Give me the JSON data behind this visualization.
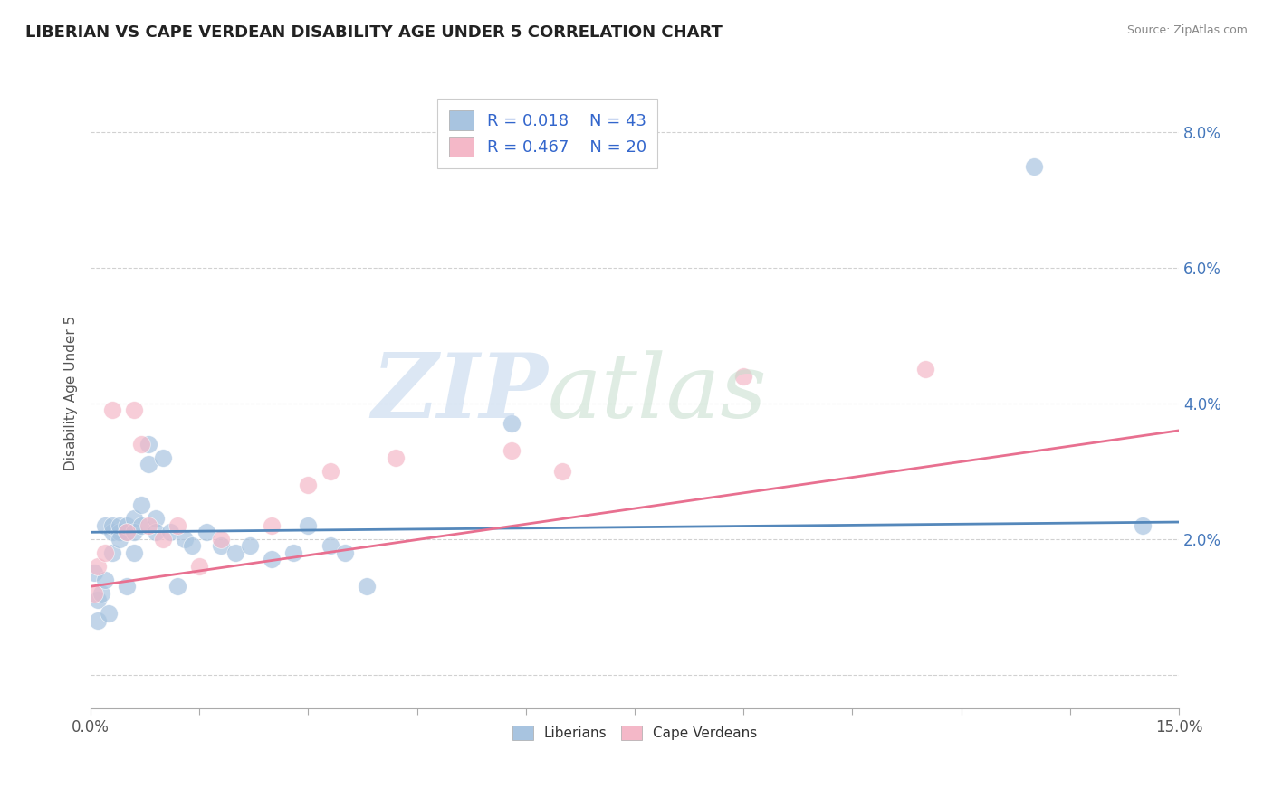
{
  "title": "LIBERIAN VS CAPE VERDEAN DISABILITY AGE UNDER 5 CORRELATION CHART",
  "source": "Source: ZipAtlas.com",
  "ylabel": "Disability Age Under 5",
  "xlim": [
    0.0,
    0.15
  ],
  "ylim": [
    -0.005,
    0.088
  ],
  "xticks": [
    0.0,
    0.015,
    0.03,
    0.045,
    0.06,
    0.075,
    0.09,
    0.105,
    0.12,
    0.135,
    0.15
  ],
  "xtick_labels": [
    "0.0%",
    "",
    "",
    "",
    "",
    "",
    "",
    "",
    "",
    "",
    "15.0%"
  ],
  "yticks": [
    0.0,
    0.02,
    0.04,
    0.06,
    0.08
  ],
  "ytick_labels": [
    "",
    "2.0%",
    "4.0%",
    "6.0%",
    "8.0%"
  ],
  "liberian_R": 0.018,
  "liberian_N": 43,
  "capeverdean_R": 0.467,
  "capeverdean_N": 20,
  "liberian_color": "#a8c4e0",
  "capeverdean_color": "#f4b8c8",
  "liberian_line_color": "#5588bb",
  "capeverdean_line_color": "#e87090",
  "background_color": "#ffffff",
  "grid_color": "#cccccc",
  "liberian_x": [
    0.0005,
    0.001,
    0.001,
    0.0015,
    0.002,
    0.002,
    0.0025,
    0.003,
    0.003,
    0.003,
    0.004,
    0.004,
    0.004,
    0.005,
    0.005,
    0.005,
    0.006,
    0.006,
    0.006,
    0.007,
    0.007,
    0.008,
    0.008,
    0.009,
    0.009,
    0.01,
    0.011,
    0.012,
    0.013,
    0.014,
    0.016,
    0.018,
    0.02,
    0.022,
    0.025,
    0.028,
    0.03,
    0.033,
    0.035,
    0.038,
    0.058,
    0.13,
    0.145
  ],
  "liberian_y": [
    0.015,
    0.008,
    0.011,
    0.012,
    0.022,
    0.014,
    0.009,
    0.018,
    0.021,
    0.022,
    0.021,
    0.022,
    0.02,
    0.021,
    0.013,
    0.022,
    0.023,
    0.021,
    0.018,
    0.022,
    0.025,
    0.031,
    0.034,
    0.023,
    0.021,
    0.032,
    0.021,
    0.013,
    0.02,
    0.019,
    0.021,
    0.019,
    0.018,
    0.019,
    0.017,
    0.018,
    0.022,
    0.019,
    0.018,
    0.013,
    0.037,
    0.075,
    0.022
  ],
  "capeverdean_x": [
    0.0005,
    0.001,
    0.002,
    0.003,
    0.005,
    0.006,
    0.007,
    0.008,
    0.01,
    0.012,
    0.015,
    0.018,
    0.025,
    0.03,
    0.033,
    0.042,
    0.058,
    0.065,
    0.09,
    0.115
  ],
  "capeverdean_y": [
    0.012,
    0.016,
    0.018,
    0.039,
    0.021,
    0.039,
    0.034,
    0.022,
    0.02,
    0.022,
    0.016,
    0.02,
    0.022,
    0.028,
    0.03,
    0.032,
    0.033,
    0.03,
    0.044,
    0.045
  ],
  "lib_line_x0": 0.0,
  "lib_line_y0": 0.021,
  "lib_line_x1": 0.15,
  "lib_line_y1": 0.0225,
  "cv_line_x0": 0.0,
  "cv_line_y0": 0.013,
  "cv_line_x1": 0.15,
  "cv_line_y1": 0.036
}
